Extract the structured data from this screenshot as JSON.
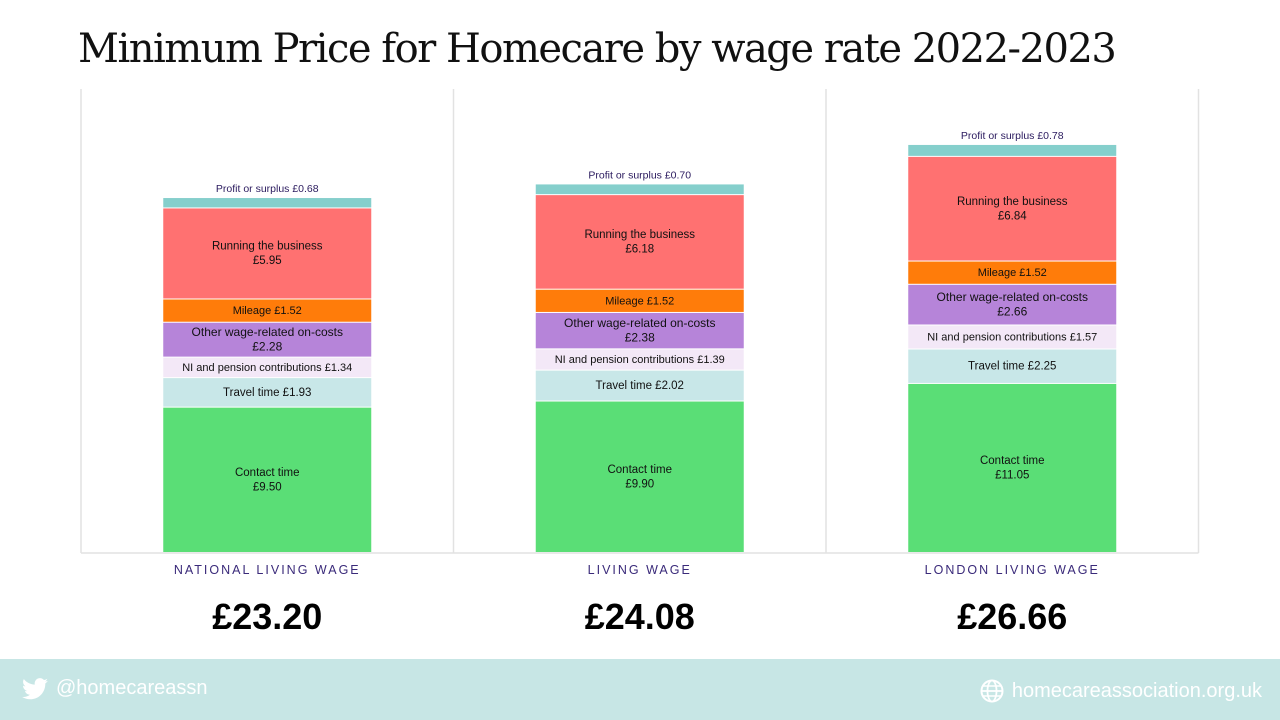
{
  "title": "Minimum Price for Homecare by wage rate 2022-2023",
  "chart_data": {
    "type": "bar",
    "stacked": true,
    "categories": [
      "NATIONAL LIVING WAGE",
      "LIVING WAGE",
      "LONDON LIVING WAGE"
    ],
    "totals": [
      "£23.20",
      "£24.08",
      "£26.66"
    ],
    "series": [
      {
        "name": "Contact time",
        "color": "#5ade76",
        "values": [
          9.5,
          9.9,
          11.05
        ],
        "labels": [
          [
            "Contact time",
            "£9.50"
          ],
          [
            "Contact time",
            "£9.90"
          ],
          [
            "Contact time",
            "£11.05"
          ]
        ]
      },
      {
        "name": "Travel time",
        "color": "#c8e7e8",
        "values": [
          1.93,
          2.02,
          2.25
        ],
        "labels": [
          [
            "Travel time £1.93"
          ],
          [
            "Travel time £2.02"
          ],
          [
            "Travel time £2.25"
          ]
        ]
      },
      {
        "name": "NI and pension contributions",
        "color": "#f3e8f7",
        "values": [
          1.34,
          1.39,
          1.57
        ],
        "labels": [
          [
            "NI and pension contributions £1.34"
          ],
          [
            "NI and pension contributions £1.39"
          ],
          [
            "NI and pension contributions £1.57"
          ]
        ]
      },
      {
        "name": "Other wage-related on-costs",
        "color": "#b684d9",
        "values": [
          2.28,
          2.38,
          2.66
        ],
        "labels": [
          [
            "Other wage-related on-costs",
            "£2.28"
          ],
          [
            "Other wage-related on-costs",
            "£2.38"
          ],
          [
            "Other wage-related on-costs",
            "£2.66"
          ]
        ]
      },
      {
        "name": "Mileage",
        "color": "#ff7c0a",
        "values": [
          1.52,
          1.52,
          1.52
        ],
        "labels": [
          [
            "Mileage £1.52"
          ],
          [
            "Mileage £1.52"
          ],
          [
            "Mileage £1.52"
          ]
        ]
      },
      {
        "name": "Running the business",
        "color": "#ff7171",
        "values": [
          5.95,
          6.18,
          6.84
        ],
        "labels": [
          [
            "Running the business",
            "£5.95"
          ],
          [
            "Running the business",
            "£6.18"
          ],
          [
            "Running the business",
            "£6.84"
          ]
        ]
      },
      {
        "name": "Profit or surplus",
        "color": "#85cfcc",
        "values": [
          0.68,
          0.7,
          0.78
        ],
        "labels": [
          [
            "Profit or surplus £0.68"
          ],
          [
            "Profit or surplus £0.70"
          ],
          [
            "Profit or surplus £0.78"
          ]
        ]
      }
    ]
  },
  "footer": {
    "twitter_handle": "@homecareassn",
    "website": "homecareassociation.org.uk"
  }
}
